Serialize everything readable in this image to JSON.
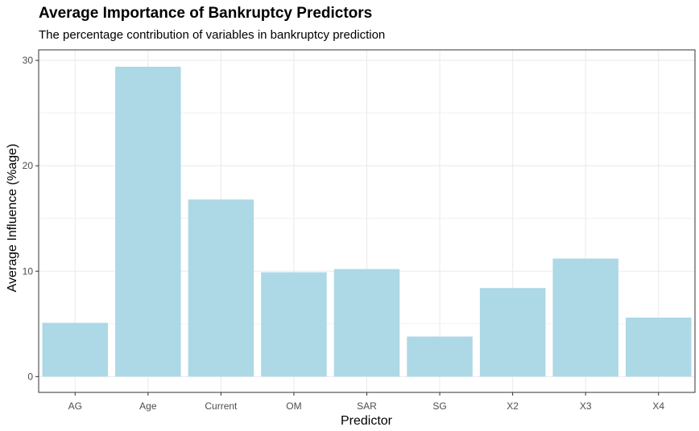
{
  "chart_data": {
    "type": "bar",
    "title": "Average Importance of Bankruptcy Predictors",
    "subtitle": "The percentage contribution of variables in bankruptcy prediction",
    "xlabel": "Predictor",
    "ylabel": "Average Influence (%age)",
    "categories": [
      "AG",
      "Age",
      "Current",
      "OM",
      "SAR",
      "SG",
      "X2",
      "X3",
      "X4"
    ],
    "values": [
      5.1,
      29.4,
      16.8,
      9.9,
      10.2,
      3.8,
      8.4,
      11.2,
      5.6
    ],
    "ylim": [
      -1.5,
      31
    ],
    "yticks": [
      0,
      10,
      20,
      30
    ],
    "grid": true,
    "legend": "none",
    "bar_color": "#add8e6",
    "grid_color": "#ebebeb",
    "panel_border_color": "#333333"
  }
}
